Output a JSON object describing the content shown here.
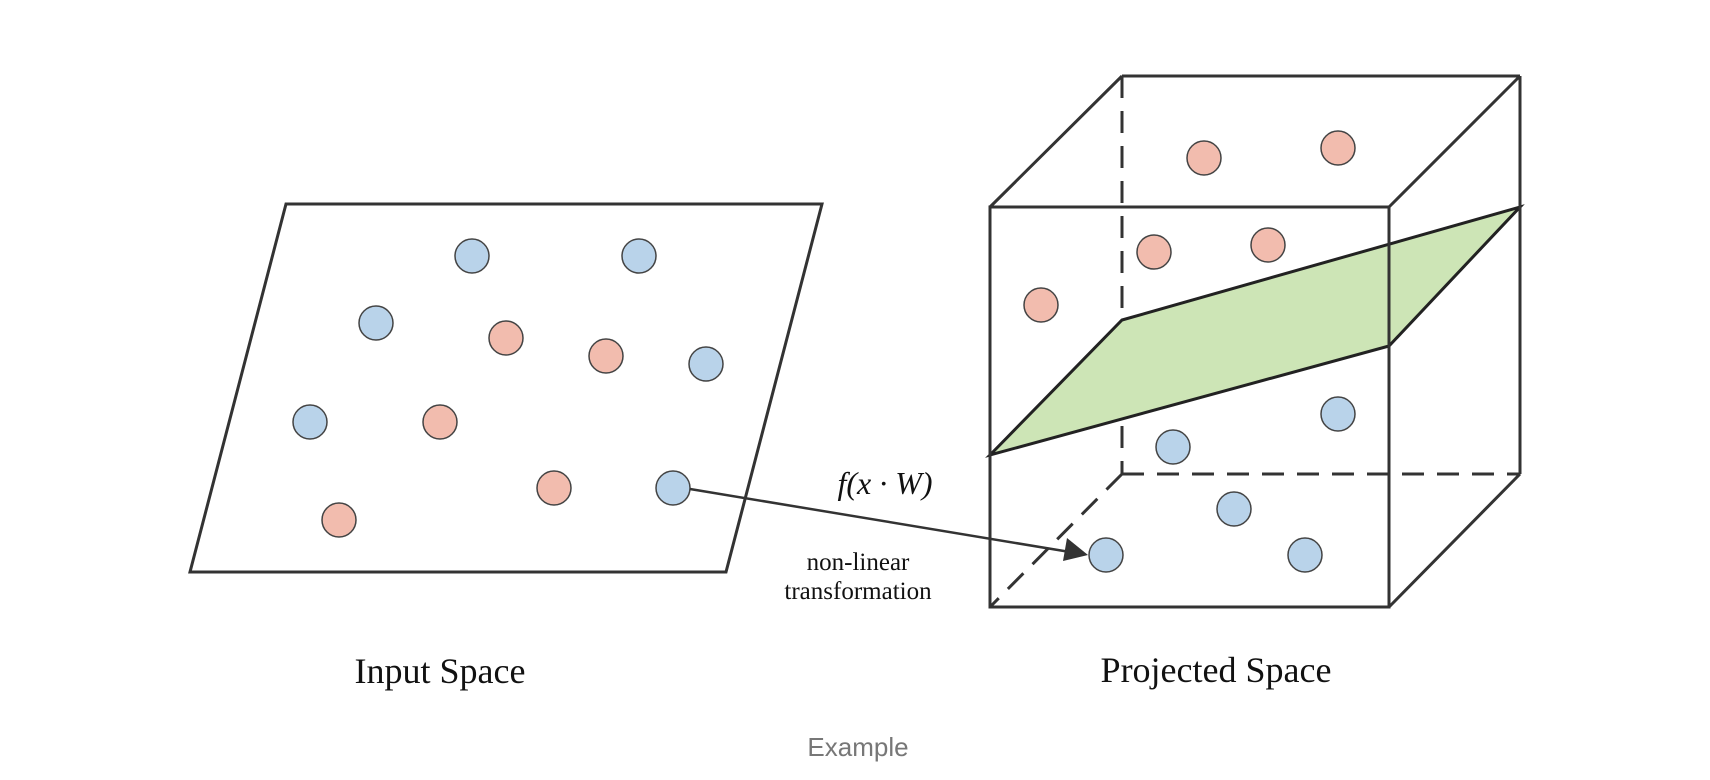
{
  "colors": {
    "blue_point": "#b9d3ea",
    "red_point": "#f2bcae",
    "plane": "#cde5b6",
    "stroke": "#333333"
  },
  "input_space": {
    "label": "Input Space",
    "points": [
      {
        "class": "blue"
      },
      {
        "class": "blue"
      },
      {
        "class": "blue"
      },
      {
        "class": "red"
      },
      {
        "class": "red"
      },
      {
        "class": "blue"
      },
      {
        "class": "blue"
      },
      {
        "class": "red"
      },
      {
        "class": "red"
      },
      {
        "class": "blue"
      },
      {
        "class": "red"
      }
    ]
  },
  "projected_space": {
    "label": "Projected Space",
    "points": [
      {
        "class": "red"
      },
      {
        "class": "red"
      },
      {
        "class": "red"
      },
      {
        "class": "red"
      },
      {
        "class": "red"
      },
      {
        "class": "blue"
      },
      {
        "class": "blue"
      },
      {
        "class": "blue"
      },
      {
        "class": "blue"
      },
      {
        "class": "blue"
      }
    ]
  },
  "transform": {
    "formula": "f(x · W)",
    "description_line1": "non-linear",
    "description_line2": "transformation"
  },
  "caption": "Example"
}
